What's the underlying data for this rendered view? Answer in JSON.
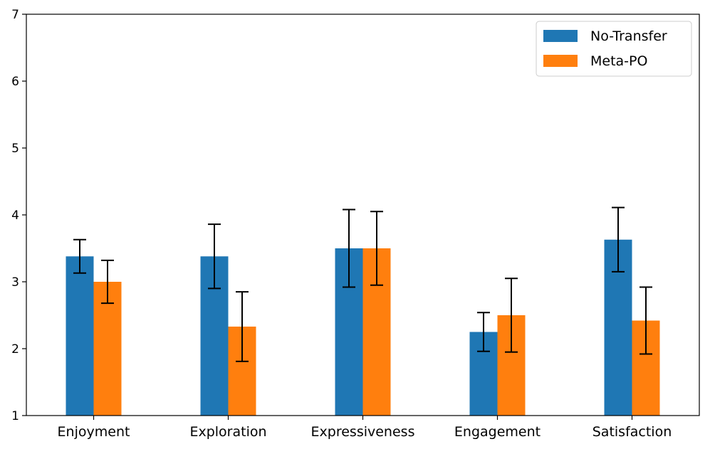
{
  "chart_data": {
    "type": "bar",
    "title": "",
    "xlabel": "",
    "ylabel": "",
    "ylim": [
      1,
      7
    ],
    "yticks": [
      1,
      2,
      3,
      4,
      5,
      6,
      7
    ],
    "grid": false,
    "legend_position": "top-right",
    "categories": [
      "Enjoyment",
      "Exploration",
      "Expressiveness",
      "Engagement",
      "Satisfaction"
    ],
    "series": [
      {
        "name": "No-Transfer",
        "color": "#1f77b4",
        "values": [
          3.38,
          3.38,
          3.5,
          2.25,
          3.63
        ],
        "error": [
          0.25,
          0.48,
          0.58,
          0.29,
          0.48
        ]
      },
      {
        "name": "Meta-PO",
        "color": "#ff7f0e",
        "values": [
          3.0,
          2.33,
          3.5,
          2.5,
          2.42
        ],
        "error": [
          0.32,
          0.52,
          0.55,
          0.55,
          0.5
        ]
      }
    ]
  }
}
